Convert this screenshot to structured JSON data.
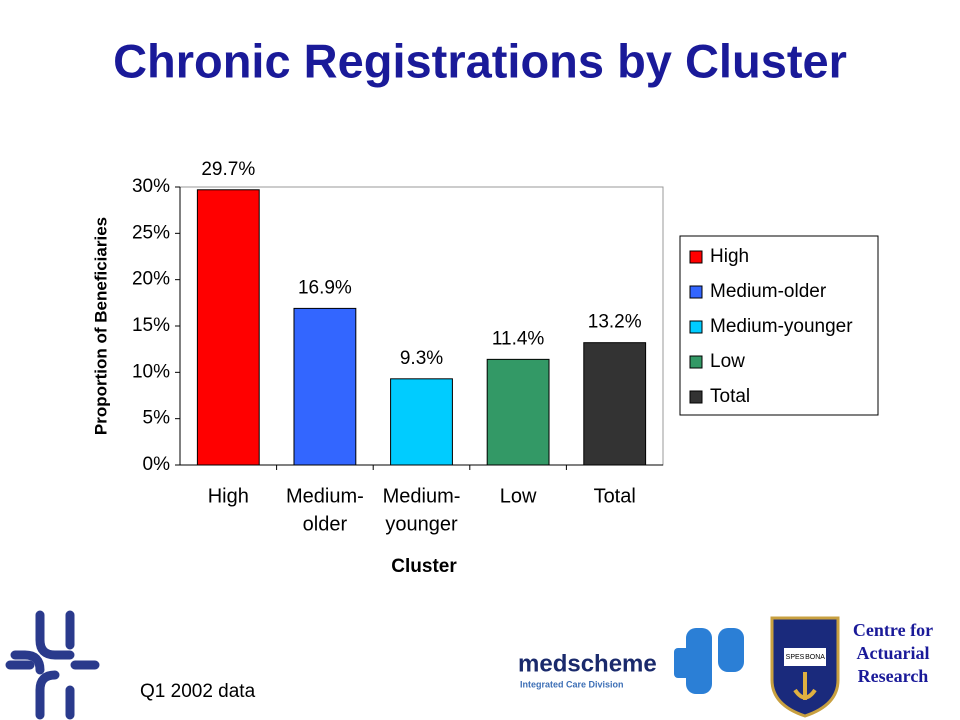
{
  "chart_data": {
    "type": "bar",
    "title": "Chronic Registrations by Cluster",
    "y_label": "Proportion of Beneficiaries",
    "x_label": "Cluster",
    "categories": [
      [
        "High"
      ],
      [
        "Medium-",
        "older"
      ],
      [
        "Medium-",
        "younger"
      ],
      [
        "Low"
      ],
      [
        "Total"
      ]
    ],
    "values": [
      29.7,
      16.9,
      9.3,
      11.4,
      13.2
    ],
    "value_labels": [
      "29.7%",
      "16.9%",
      "9.3%",
      "11.4%",
      "13.2%"
    ],
    "colors": [
      "#ff0000",
      "#3366ff",
      "#00ccff",
      "#339966",
      "#333333"
    ],
    "legend_labels": [
      "High",
      "Medium-older",
      "Medium-younger",
      "Low",
      "Total"
    ],
    "legend": "right",
    "ylim": [
      0,
      30
    ],
    "yticks": [
      {
        "value": 0,
        "label": "0%"
      },
      {
        "value": 5,
        "label": "5%"
      },
      {
        "value": 10,
        "label": "10%"
      },
      {
        "value": 15,
        "label": "15%"
      },
      {
        "value": 20,
        "label": "20%"
      },
      {
        "value": 25,
        "label": "25%"
      },
      {
        "value": 30,
        "label": "30%"
      }
    ],
    "grid": false
  },
  "footer": {
    "note": "Q1 2002 data",
    "medscheme": "medscheme",
    "division": "Integrated Care Division",
    "crest": [
      "SPES",
      "BONA"
    ],
    "centre": [
      "Centre for",
      "Actuarial",
      "Research"
    ]
  }
}
